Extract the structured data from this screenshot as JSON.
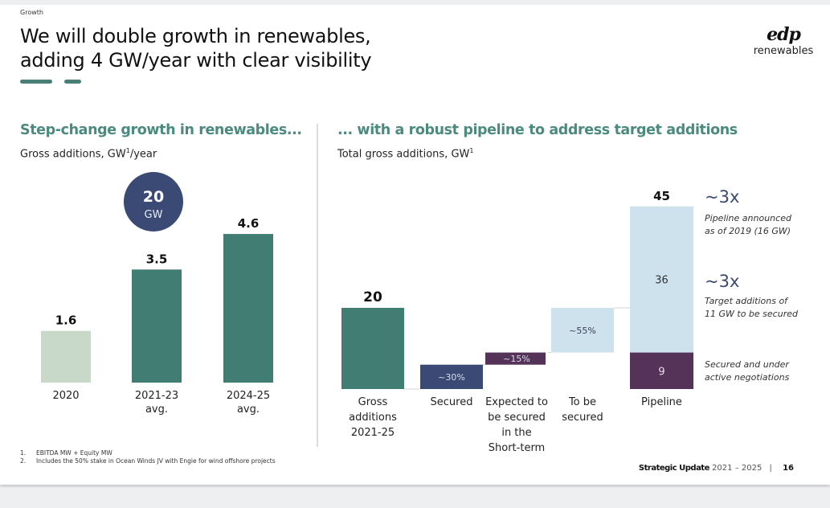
{
  "header": {
    "section_tag": "Growth",
    "title_line1": "We will double growth in renewables,",
    "title_line2": "adding 4 GW/year with clear visibility"
  },
  "logo": {
    "brand": "edp",
    "subtitle": "renewables"
  },
  "left_panel": {
    "title": "Step-change growth in renewables...",
    "subtitle_pre": "Gross additions, GW",
    "subtitle_sup": "1",
    "subtitle_post": "/year"
  },
  "right_panel": {
    "title": "... with a robust pipeline to address target additions",
    "subtitle_pre": "Total gross additions, GW",
    "subtitle_sup": "1"
  },
  "colors": {
    "teal": "#417d73",
    "light_green": "#c8d9c9",
    "navy": "#3a4a75",
    "purple": "#553358",
    "light_blue": "#cde2ec",
    "accent_text": "#4b8a7f",
    "callout_text": "#3a4a75"
  },
  "chart_data": [
    {
      "type": "bar",
      "title": "Step-change growth in renewables...",
      "xlabel": "",
      "ylabel": "Gross additions, GW/year",
      "categories": [
        "2020",
        "2021-23 avg.",
        "2024-25 avg."
      ],
      "category_lines": [
        [
          "2020"
        ],
        [
          "2021-23",
          "avg."
        ],
        [
          "2024-25",
          "avg."
        ]
      ],
      "values": [
        1.6,
        3.5,
        4.6
      ],
      "value_labels": [
        "1.6",
        "3.5",
        "4.6"
      ],
      "bar_colors": [
        "light_green",
        "teal",
        "teal"
      ],
      "ylim": [
        0,
        5
      ],
      "grid": false,
      "annotation": {
        "value": "20",
        "unit": "GW",
        "shape": "circle"
      }
    },
    {
      "type": "bar",
      "subtype": "waterfall",
      "title": "... with a robust pipeline to address target additions",
      "xlabel": "",
      "ylabel": "Total gross additions, GW",
      "ylim": [
        0,
        45
      ],
      "grid": false,
      "categories": [
        "Gross additions 2021-25",
        "Secured",
        "Expected to be secured in the Short-term",
        "To be secured",
        "Pipeline"
      ],
      "category_lines": [
        [
          "Gross",
          "additions",
          "2021-25"
        ],
        [
          "Secured"
        ],
        [
          "Expected to",
          "be secured",
          "in the",
          "Short-term"
        ],
        [
          "To be",
          "secured"
        ],
        [
          "Pipeline"
        ]
      ],
      "gross_total": 20,
      "gross_total_label": "20",
      "waterfall_segments": [
        {
          "category": "Secured",
          "share_pct": 30,
          "label": "~30%",
          "color": "navy"
        },
        {
          "category": "Expected to be secured in the Short-term",
          "share_pct": 15,
          "label": "~15%",
          "color": "purple"
        },
        {
          "category": "To be secured",
          "share_pct": 55,
          "label": "~55%",
          "color": "light_blue"
        }
      ],
      "pipeline": {
        "total": 45,
        "total_label": "45",
        "series": [
          {
            "name": "Secured and under active negotiations",
            "value": 9,
            "label": "9",
            "color": "purple"
          },
          {
            "name": "Target additions of 11 GW to be secured",
            "value": 36,
            "label": "36",
            "color": "light_blue"
          }
        ]
      },
      "annotations": [
        {
          "multiplier": "~3x",
          "line1": "Pipeline announced",
          "line2": "as of 2019 (16 GW)"
        },
        {
          "multiplier": "~3x",
          "line1": "Target additions of",
          "line2": "11 GW to be secured"
        },
        {
          "multiplier": "",
          "line1": "Secured and under",
          "line2": "active negotiations"
        }
      ]
    }
  ],
  "footnotes": [
    {
      "num": "1.",
      "text": "EBITDA MW + Equity MW"
    },
    {
      "num": "2.",
      "text": "Includes the 50% stake in Ocean Winds JV with Engie for wind offshore projects"
    }
  ],
  "footer": {
    "doc_name": "Strategic Update",
    "period": "2021 – 2025",
    "separator": "|",
    "page_number": "16"
  }
}
